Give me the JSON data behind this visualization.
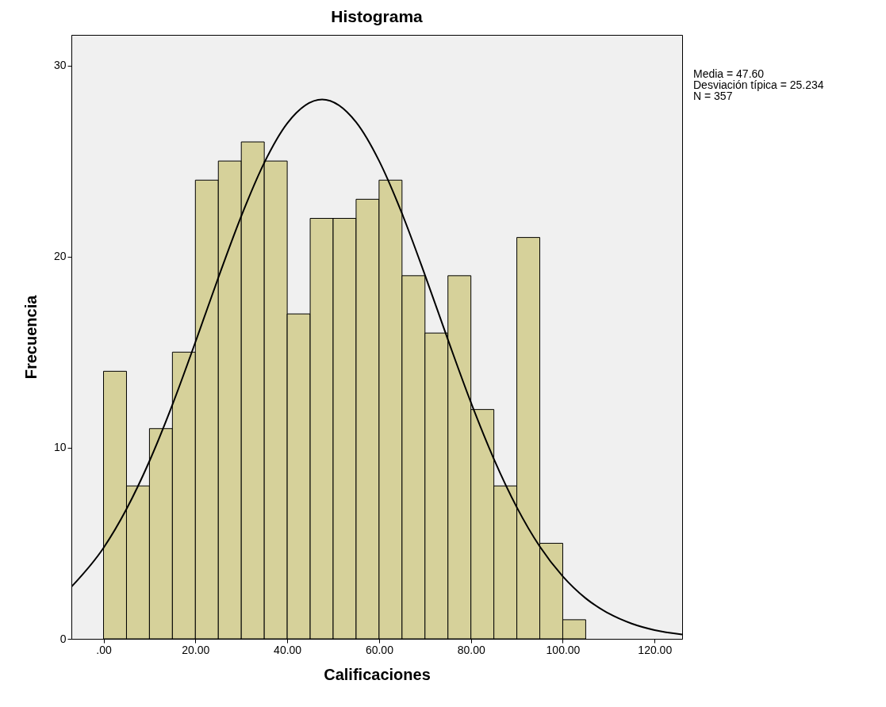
{
  "chart_data": {
    "type": "histogram",
    "title": "Histograma",
    "xlabel": "Calificaciones",
    "ylabel": "Frecuencia",
    "annotations": [
      "Media = 47.60",
      "Desviación típica = 25.234",
      "N = 357"
    ],
    "bins": [
      0,
      5,
      10,
      15,
      20,
      25,
      30,
      35,
      40,
      45,
      50,
      55,
      60,
      65,
      70,
      75,
      80,
      85,
      90,
      95,
      100,
      105
    ],
    "series": [
      {
        "color": "#d6d19a",
        "values": [
          14,
          8,
          11,
          15,
          24,
          25,
          26,
          25,
          17,
          22,
          22,
          23,
          24,
          19,
          16,
          19,
          12,
          8,
          21,
          5,
          1
        ]
      },
      {
        "type": "line",
        "color": "#000000",
        "x": [
          -7,
          0,
          5,
          10,
          15,
          20,
          25,
          30,
          35,
          40,
          47.6,
          55,
          60,
          65,
          70,
          75,
          80,
          85,
          90,
          95,
          100,
          105,
          110,
          115,
          120,
          126
        ],
        "values": [
          2.72,
          4.76,
          6.79,
          9.3,
          12.25,
          15.52,
          18.9,
          22.12,
          24.91,
          26.97,
          28.22,
          27.03,
          25.01,
          22.25,
          19.03,
          15.65,
          12.37,
          9.41,
          6.88,
          4.83,
          3.27,
          2.12,
          1.33,
          0.8,
          0.46,
          0.23
        ]
      }
    ],
    "xlim": [
      -7,
      126
    ],
    "xticks": [
      {
        "value": 0,
        "label": ".00"
      },
      {
        "value": 20,
        "label": "20.00"
      },
      {
        "value": 40,
        "label": "40.00"
      },
      {
        "value": 60,
        "label": "60.00"
      },
      {
        "value": 80,
        "label": "80.00"
      },
      {
        "value": 100,
        "label": "100.00"
      },
      {
        "value": 120,
        "label": "120.00"
      }
    ],
    "ylim": [
      0,
      31.6
    ],
    "yticks": [
      0,
      10,
      20,
      30
    ],
    "grid": false
  }
}
